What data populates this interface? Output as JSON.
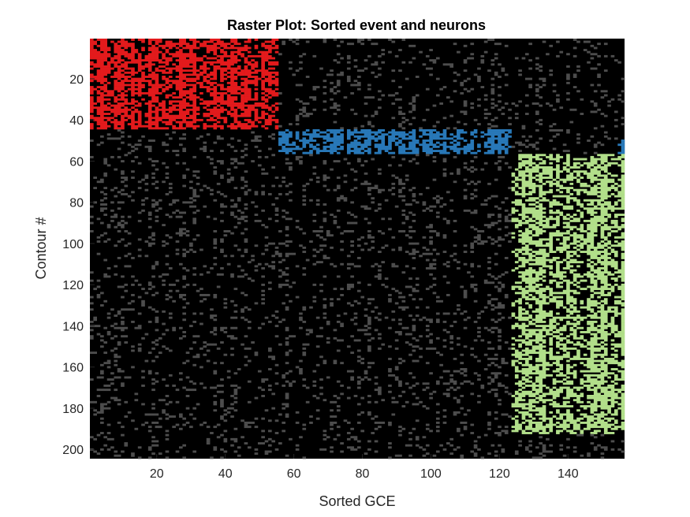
{
  "chart_data": {
    "type": "heatmap",
    "title": "Raster Plot: Sorted event and neurons",
    "xlabel": "Sorted GCE",
    "ylabel": "Contour #",
    "xlim": [
      0.5,
      156.5
    ],
    "ylim": [
      0.5,
      204.5
    ],
    "y_reversed": true,
    "grid": false,
    "x_ticks": [
      20,
      40,
      60,
      80,
      100,
      120,
      140
    ],
    "y_ticks": [
      20,
      40,
      60,
      80,
      100,
      120,
      140,
      160,
      180,
      200
    ],
    "n_events": 156,
    "n_contours": 204,
    "background_color": "#000000",
    "inactive_event_color": "#4d4d4d",
    "assemblies": [
      {
        "color": "#e31a1c",
        "events": [
          1,
          55
        ],
        "contours": [
          1,
          44
        ],
        "density": 0.55
      },
      {
        "color": "#2878b8",
        "events": [
          56,
          123
        ],
        "contours": [
          45,
          56
        ],
        "density": 0.55
      },
      {
        "color": "#b2df8a",
        "events": [
          124,
          156
        ],
        "contours": [
          57,
          192
        ],
        "density": 0.5
      },
      {
        "color": "#2878b8",
        "events": [
          155,
          156
        ],
        "contours": [
          50,
          56
        ],
        "density": 0.6
      }
    ],
    "background_density": 0.12
  }
}
